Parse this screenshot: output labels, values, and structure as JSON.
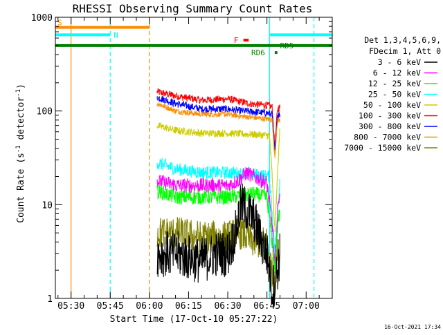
{
  "chart_data": {
    "type": "line",
    "title": "RHESSI Observing Summary Count Rates",
    "xlabel": "Start Time (17-Oct-10 05:27:22)",
    "ylabel_main": "Count Rate (s",
    "ylabel_sup1": "-1",
    "ylabel_mid": " detector",
    "ylabel_sup2": "-1",
    "ylabel_end": ")",
    "y_scale": "log",
    "ylim": [
      1,
      1000
    ],
    "xlim": [
      "05:24",
      "07:10"
    ],
    "x_ticks": [
      "05:30",
      "05:45",
      "06:00",
      "06:15",
      "06:30",
      "06:45",
      "07:00"
    ],
    "y_ticks": [
      "1",
      "10",
      "100",
      "1000"
    ],
    "timestamp": "16-Oct-2021 17:34",
    "legend_header_1": "Det 1,3,4,5,6,9,",
    "legend_header_2": "FDecim 1, Att 0",
    "legend": [
      {
        "label": "3 - 6 keV",
        "color": "#000000"
      },
      {
        "label": "6 - 12 keV",
        "color": "#ff00ff"
      },
      {
        "label": "12 - 25 keV",
        "color": "#00ff00"
      },
      {
        "label": "25 - 50 keV",
        "color": "#00ffff"
      },
      {
        "label": "50 - 100 keV",
        "color": "#cccc00"
      },
      {
        "label": "100 - 300 keV",
        "color": "#ff0000"
      },
      {
        "label": "300 - 800 keV",
        "color": "#0000ff"
      },
      {
        "label": "800 - 7000 keV",
        "color": "#ff8c00"
      },
      {
        "label": "7000 - 15000 keV",
        "color": "#808000"
      }
    ],
    "flags": {
      "S": {
        "label": "S",
        "color": "#ff8c00",
        "start": "05:24",
        "end": "06:00",
        "level": 780
      },
      "N": {
        "label": "N",
        "color": "#00ffff",
        "segments": [
          [
            "05:24",
            "05:45"
          ],
          [
            "06:46",
            "07:10"
          ]
        ],
        "level": 650
      },
      "F": {
        "label": "F",
        "color": "#ff0000",
        "start": "06:36",
        "end": "06:38",
        "level": 570
      },
      "RD5": {
        "label": "RD5",
        "color": "#008000",
        "start": "05:24",
        "end": "07:10",
        "level": 500
      },
      "RD6": {
        "label": "RD6",
        "color": "#008000",
        "start": "06:48",
        "end": "06:49",
        "level": 420
      }
    },
    "vlines": [
      {
        "time": "05:30",
        "color": "#ff8c00",
        "style": "solid"
      },
      {
        "time": "05:45",
        "color": "#00ffff",
        "style": "dashed"
      },
      {
        "time": "06:00",
        "color": "#ff8c00",
        "style": "dashed"
      },
      {
        "time": "06:46",
        "color": "#00ffff",
        "style": "solid"
      },
      {
        "time": "07:03",
        "color": "#00ffff",
        "style": "dashed"
      }
    ],
    "series": [
      {
        "name": "100 - 300 keV",
        "color": "#ff0000",
        "noise": 0.04,
        "points": [
          [
            "06:03",
            160
          ],
          [
            "06:10",
            145
          ],
          [
            "06:20",
            130
          ],
          [
            "06:30",
            135
          ],
          [
            "06:35",
            125
          ],
          [
            "06:40",
            118
          ],
          [
            "06:45",
            115
          ],
          [
            "06:47",
            110
          ],
          [
            "06:48",
            40
          ],
          [
            "06:49",
            105
          ],
          [
            "06:50",
            110
          ]
        ]
      },
      {
        "name": "300 - 800 keV",
        "color": "#0000ff",
        "noise": 0.04,
        "points": [
          [
            "06:03",
            140
          ],
          [
            "06:10",
            120
          ],
          [
            "06:20",
            105
          ],
          [
            "06:30",
            105
          ],
          [
            "06:35",
            100
          ],
          [
            "06:40",
            98
          ],
          [
            "06:45",
            95
          ],
          [
            "06:47",
            92
          ],
          [
            "06:48",
            35
          ],
          [
            "06:49",
            90
          ],
          [
            "06:50",
            92
          ]
        ]
      },
      {
        "name": "800 - 7000 keV",
        "color": "#ff8c00",
        "noise": 0.03,
        "points": [
          [
            "06:03",
            120
          ],
          [
            "06:10",
            100
          ],
          [
            "06:20",
            92
          ],
          [
            "06:30",
            92
          ],
          [
            "06:35",
            88
          ],
          [
            "06:40",
            85
          ],
          [
            "06:45",
            82
          ],
          [
            "06:47",
            80
          ],
          [
            "06:48",
            32
          ],
          [
            "06:49",
            78
          ],
          [
            "06:50",
            80
          ]
        ]
      },
      {
        "name": "50 - 100 keV",
        "color": "#cccc00",
        "noise": 0.04,
        "points": [
          [
            "06:03",
            70
          ],
          [
            "06:10",
            62
          ],
          [
            "06:20",
            58
          ],
          [
            "06:30",
            58
          ],
          [
            "06:40",
            56
          ],
          [
            "06:46",
            55
          ],
          [
            "06:47",
            20
          ],
          [
            "06:48",
            5
          ],
          [
            "06:49",
            20
          ],
          [
            "06:50",
            70
          ]
        ]
      },
      {
        "name": "25 - 50 keV",
        "color": "#00ffff",
        "noise": 0.07,
        "points": [
          [
            "06:03",
            28
          ],
          [
            "06:10",
            24
          ],
          [
            "06:20",
            22
          ],
          [
            "06:30",
            22
          ],
          [
            "06:40",
            21
          ],
          [
            "06:46",
            20
          ],
          [
            "06:47",
            8
          ],
          [
            "06:48",
            3
          ],
          [
            "06:49",
            8
          ],
          [
            "06:50",
            20
          ]
        ]
      },
      {
        "name": "6 - 12 keV",
        "color": "#ff00ff",
        "noise": 0.08,
        "points": [
          [
            "06:03",
            18
          ],
          [
            "06:10",
            16
          ],
          [
            "06:20",
            16
          ],
          [
            "06:30",
            16
          ],
          [
            "06:34",
            18
          ],
          [
            "06:37",
            22
          ],
          [
            "06:40",
            20
          ],
          [
            "06:45",
            17
          ],
          [
            "06:47",
            6
          ],
          [
            "06:48",
            2
          ],
          [
            "06:49",
            8
          ],
          [
            "06:50",
            15
          ]
        ]
      },
      {
        "name": "12 - 25 keV",
        "color": "#00ff00",
        "noise": 0.08,
        "points": [
          [
            "06:03",
            14
          ],
          [
            "06:10",
            12
          ],
          [
            "06:20",
            12
          ],
          [
            "06:30",
            12
          ],
          [
            "06:40",
            13
          ],
          [
            "06:45",
            12
          ],
          [
            "06:47",
            4
          ],
          [
            "06:48",
            2
          ],
          [
            "06:49",
            5
          ],
          [
            "06:50",
            10
          ]
        ]
      },
      {
        "name": "7000 - 15000 keV",
        "color": "#808000",
        "noise": 0.18,
        "points": [
          [
            "06:03",
            5
          ],
          [
            "06:10",
            5
          ],
          [
            "06:20",
            4.5
          ],
          [
            "06:30",
            4.5
          ],
          [
            "06:35",
            5
          ],
          [
            "06:40",
            4
          ],
          [
            "06:45",
            4
          ],
          [
            "06:47",
            2
          ],
          [
            "06:48",
            1.5
          ],
          [
            "06:49",
            3
          ],
          [
            "06:50",
            3
          ]
        ]
      },
      {
        "name": "3 - 6 keV",
        "color": "#000000",
        "noise": 0.25,
        "points": [
          [
            "06:03",
            3
          ],
          [
            "06:10",
            3
          ],
          [
            "06:20",
            2.5
          ],
          [
            "06:25",
            3
          ],
          [
            "06:30",
            3
          ],
          [
            "06:33",
            5
          ],
          [
            "06:35",
            10
          ],
          [
            "06:37",
            9
          ],
          [
            "06:40",
            7
          ],
          [
            "06:43",
            4
          ],
          [
            "06:45",
            3
          ],
          [
            "06:47",
            1.2
          ],
          [
            "06:49",
            2
          ],
          [
            "06:50",
            3
          ]
        ]
      }
    ]
  }
}
